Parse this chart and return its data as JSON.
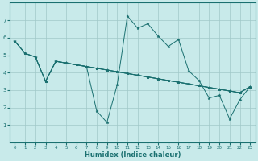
{
  "xlabel": "Humidex (Indice chaleur)",
  "ylabel": "",
  "background_color": "#c8eaea",
  "grid_color": "#a0c8c8",
  "line_color": "#1a7070",
  "xlim": [
    -0.5,
    23.5
  ],
  "ylim": [
    0,
    8
  ],
  "xticks": [
    0,
    1,
    2,
    3,
    4,
    5,
    6,
    7,
    8,
    9,
    10,
    11,
    12,
    13,
    14,
    15,
    16,
    17,
    18,
    19,
    20,
    21,
    22,
    23
  ],
  "yticks": [
    1,
    2,
    3,
    4,
    5,
    6,
    7
  ],
  "lines": [
    {
      "x": [
        0,
        1,
        2,
        3,
        4,
        5,
        6,
        7,
        8,
        9,
        10,
        11,
        12,
        13,
        14,
        15,
        16,
        17,
        18,
        19,
        20,
        21,
        22,
        23
      ],
      "y": [
        5.8,
        5.1,
        4.9,
        3.5,
        4.65,
        4.55,
        4.45,
        4.35,
        1.8,
        1.15,
        3.3,
        7.25,
        6.55,
        6.8,
        6.1,
        5.5,
        5.9,
        4.1,
        3.55,
        2.55,
        2.7,
        1.35,
        2.45,
        3.2
      ]
    },
    {
      "x": [
        0,
        1,
        2,
        3,
        4,
        5,
        6,
        7,
        8,
        9,
        10,
        11,
        12,
        13,
        14,
        15,
        16,
        17,
        18,
        19,
        20,
        21,
        22,
        23
      ],
      "y": [
        5.8,
        5.1,
        4.9,
        3.5,
        4.65,
        4.55,
        4.45,
        4.35,
        4.25,
        4.15,
        4.05,
        3.95,
        3.85,
        3.75,
        3.65,
        3.55,
        3.45,
        3.35,
        3.25,
        3.15,
        3.05,
        2.95,
        2.85,
        3.2
      ]
    },
    {
      "x": [
        0,
        1,
        2,
        3,
        4,
        5,
        6,
        7,
        8,
        9,
        10,
        11,
        12,
        13,
        14,
        15,
        16,
        17,
        18,
        19,
        20,
        21,
        22,
        23
      ],
      "y": [
        5.8,
        5.1,
        4.9,
        3.5,
        4.65,
        4.55,
        4.45,
        4.35,
        4.25,
        4.15,
        4.05,
        3.95,
        3.85,
        3.75,
        3.65,
        3.55,
        3.45,
        3.35,
        3.25,
        3.15,
        3.05,
        2.95,
        2.85,
        3.2
      ]
    },
    {
      "x": [
        4,
        5,
        6,
        7,
        8,
        9,
        10,
        11,
        12,
        13,
        14,
        15,
        16,
        17,
        18,
        19,
        20,
        21,
        22,
        23
      ],
      "y": [
        4.65,
        4.55,
        4.45,
        4.35,
        4.25,
        4.15,
        4.05,
        3.95,
        3.85,
        3.75,
        3.65,
        3.55,
        3.45,
        3.35,
        3.25,
        3.15,
        3.05,
        2.95,
        2.85,
        3.2
      ]
    }
  ]
}
